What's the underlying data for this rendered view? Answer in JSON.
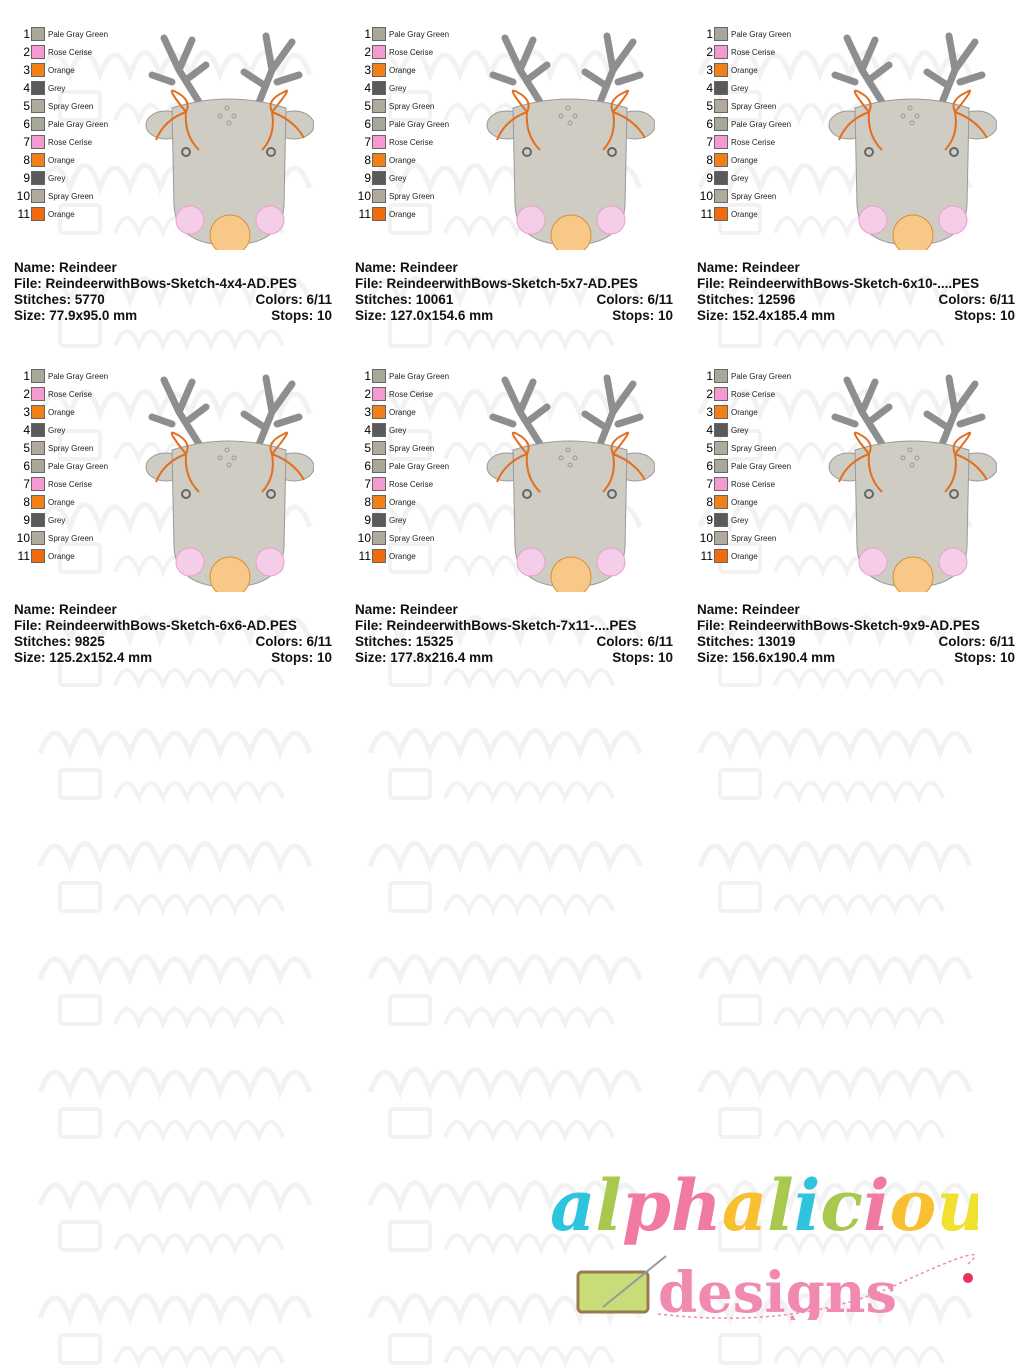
{
  "watermark": {
    "line1": "alphalicious",
    "line2": "designs"
  },
  "palette": [
    {
      "num": "1",
      "name": "Pale Gray Green",
      "color": "#a8a89a"
    },
    {
      "num": "2",
      "name": "Rose Cerise",
      "color": "#f49ad0"
    },
    {
      "num": "3",
      "name": "Orange",
      "color": "#f08018"
    },
    {
      "num": "4",
      "name": "Grey",
      "color": "#5a5a5a"
    },
    {
      "num": "5",
      "name": "Spray Green",
      "color": "#b0aa9c"
    },
    {
      "num": "6",
      "name": "Pale Gray Green",
      "color": "#a8a89a"
    },
    {
      "num": "7",
      "name": "Rose Cerise",
      "color": "#f49ad0"
    },
    {
      "num": "8",
      "name": "Orange",
      "color": "#f08018"
    },
    {
      "num": "9",
      "name": "Grey",
      "color": "#5a5a5a"
    },
    {
      "num": "10",
      "name": "Spray Green",
      "color": "#b0aa9c"
    },
    {
      "num": "11",
      "name": "Orange",
      "color": "#f06a10"
    }
  ],
  "labels": {
    "name": "Name:",
    "file": "File:",
    "stitches": "Stitches:",
    "size": "Size:",
    "colors": "Colors:",
    "stops": "Stops:"
  },
  "designs": [
    {
      "name": "Reindeer",
      "file": "ReindeerwithBows-Sketch-4x4-AD.PES",
      "stitches": "5770",
      "colors": "6/11",
      "size": "77.9x95.0 mm",
      "stops": "10"
    },
    {
      "name": "Reindeer",
      "file": "ReindeerwithBows-Sketch-5x7-AD.PES",
      "stitches": "10061",
      "colors": "6/11",
      "size": "127.0x154.6 mm",
      "stops": "10"
    },
    {
      "name": "Reindeer",
      "file": "ReindeerwithBows-Sketch-6x10-....PES",
      "stitches": "12596",
      "colors": "6/11",
      "size": "152.4x185.4 mm",
      "stops": "10"
    },
    {
      "name": "Reindeer",
      "file": "ReindeerwithBows-Sketch-6x6-AD.PES",
      "stitches": "9825",
      "colors": "6/11",
      "size": "125.2x152.4 mm",
      "stops": "10"
    },
    {
      "name": "Reindeer",
      "file": "ReindeerwithBows-Sketch-7x11-....PES",
      "stitches": "15325",
      "colors": "6/11",
      "size": "177.8x216.4 mm",
      "stops": "10"
    },
    {
      "name": "Reindeer",
      "file": "ReindeerwithBows-Sketch-9x9-AD.PES",
      "stitches": "13019",
      "colors": "6/11",
      "size": "156.6x190.4 mm",
      "stops": "10"
    }
  ],
  "logo": {
    "line1": "alphalicious",
    "line2": "designs",
    "letter_colors": [
      "#2ec4dc",
      "#a8c850",
      "#f07aa0",
      "#f07aa0",
      "#f8c030",
      "#a8c850",
      "#2ec4dc",
      "#a8c850",
      "#f07aa0",
      "#f8c030",
      "#f0e030",
      "#f0e030"
    ],
    "pink": "#f08ab0",
    "spool": "#c8dc78"
  }
}
